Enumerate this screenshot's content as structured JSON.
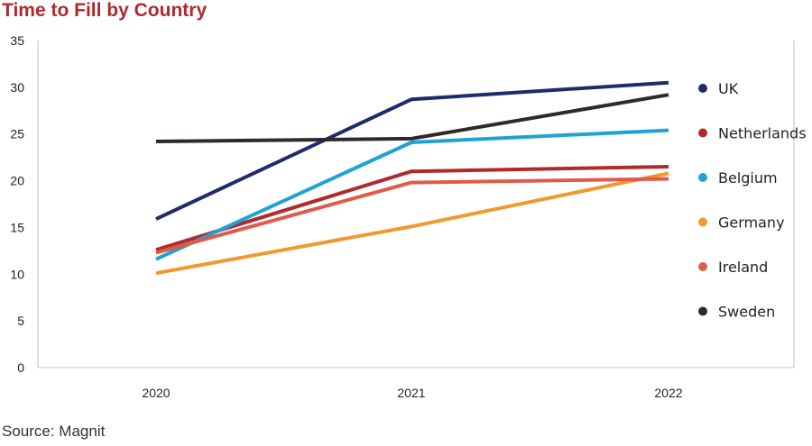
{
  "title": "Time to Fill by Country",
  "source": "Source: Magnit",
  "chart_data": {
    "type": "line",
    "x": [
      "2020",
      "2021",
      "2022"
    ],
    "ylim": [
      0,
      35
    ],
    "yticks": [
      0,
      5,
      10,
      15,
      20,
      25,
      30,
      35
    ],
    "grid": false,
    "legend_position": "right",
    "series": [
      {
        "name": "UK",
        "color": "#1f2b6b",
        "values": [
          15.9,
          28.7,
          30.5
        ]
      },
      {
        "name": "Netherlands",
        "color": "#b0292c",
        "values": [
          12.6,
          21.0,
          21.5
        ]
      },
      {
        "name": "Belgium",
        "color": "#1ea3d4",
        "values": [
          11.6,
          24.1,
          25.4
        ]
      },
      {
        "name": "Germany",
        "color": "#ef9a2f",
        "values": [
          10.1,
          15.1,
          20.8
        ]
      },
      {
        "name": "Ireland",
        "color": "#df5a48",
        "values": [
          12.3,
          19.8,
          20.2
        ]
      },
      {
        "name": "Sweden",
        "color": "#2f2a2a",
        "values": [
          24.2,
          24.5,
          29.2
        ]
      }
    ]
  }
}
